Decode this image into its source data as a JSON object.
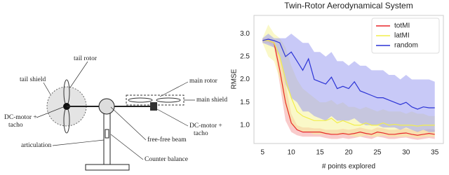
{
  "diagram": {
    "labels": {
      "tail_rotor": "tail rotor",
      "tail_shield": "tail shield",
      "dc_motor_left_1": "DC-motor +",
      "dc_motor_left_2": "tacho",
      "articulation": "articulation",
      "main_rotor": "main rotor",
      "main_shield": "main shield",
      "dc_motor_right_1": "DC-motor +",
      "dc_motor_right_2": "tacho",
      "beam": "free-free beam",
      "counter_balance": "Counter balance"
    }
  },
  "chart_data": {
    "type": "line",
    "title": "Twin-Rotor Aerodynamical System",
    "x_label": "# points explored",
    "y_label": "RMSE",
    "x": [
      5,
      6,
      7,
      8,
      9,
      10,
      11,
      12,
      13,
      14,
      15,
      16,
      17,
      18,
      19,
      20,
      21,
      22,
      23,
      24,
      25,
      26,
      27,
      28,
      29,
      30,
      31,
      32,
      33,
      34,
      35
    ],
    "xlim": [
      3.5,
      36.5
    ],
    "xticks": [
      5,
      10,
      15,
      20,
      25,
      30,
      35
    ],
    "ylim": [
      0.6,
      3.4
    ],
    "yticks": [
      {
        "value": 1,
        "label": "1.0"
      },
      {
        "value": 1.5,
        "label": "1.5"
      },
      {
        "value": 2,
        "label": "2.0"
      },
      {
        "value": 2.5,
        "label": "2.5"
      },
      {
        "value": 3,
        "label": "3.0"
      }
    ],
    "legend": "upper right",
    "series": [
      {
        "name": "totMI",
        "color": "#e8262a",
        "band_color": "#f4a0a0",
        "values": [
          2.85,
          2.85,
          2.8,
          2.2,
          1.5,
          1.05,
          0.9,
          0.85,
          0.85,
          0.85,
          0.85,
          0.82,
          0.8,
          0.8,
          0.82,
          0.8,
          0.82,
          0.85,
          0.82,
          0.8,
          0.85,
          0.83,
          0.8,
          0.8,
          0.82,
          0.83,
          0.8,
          0.78,
          0.8,
          0.82,
          0.8
        ],
        "upper": [
          2.9,
          2.9,
          2.85,
          2.5,
          1.9,
          1.25,
          1.0,
          0.95,
          0.95,
          0.93,
          0.93,
          0.9,
          0.9,
          0.9,
          0.92,
          0.9,
          0.92,
          0.95,
          0.92,
          0.9,
          0.95,
          0.93,
          0.9,
          0.9,
          0.92,
          0.93,
          0.9,
          0.88,
          0.9,
          0.92,
          0.9
        ],
        "lower": [
          2.8,
          2.8,
          2.7,
          1.9,
          1.1,
          0.85,
          0.78,
          0.75,
          0.75,
          0.75,
          0.75,
          0.72,
          0.7,
          0.7,
          0.72,
          0.7,
          0.72,
          0.75,
          0.72,
          0.7,
          0.75,
          0.73,
          0.7,
          0.7,
          0.72,
          0.73,
          0.7,
          0.68,
          0.7,
          0.72,
          0.7
        ]
      },
      {
        "name": "latMI",
        "color": "#f2ee4a",
        "band_color": "#f6f29a",
        "values": [
          2.85,
          2.85,
          2.8,
          2.5,
          2.0,
          1.6,
          1.3,
          1.2,
          1.15,
          1.1,
          1.1,
          1.1,
          1.15,
          1.05,
          1.1,
          1.05,
          1.0,
          1.0,
          1.05,
          1.0,
          1.0,
          1.05,
          1.0,
          1.02,
          1.0,
          1.0,
          1.0,
          0.98,
          1.0,
          1.0,
          1.0
        ],
        "upper": [
          2.9,
          3.2,
          3.0,
          2.9,
          2.7,
          2.3,
          2.0,
          1.8,
          1.7,
          1.6,
          1.5,
          1.5,
          1.55,
          1.45,
          1.5,
          1.4,
          1.4,
          1.35,
          1.4,
          1.35,
          1.3,
          1.35,
          1.3,
          1.3,
          1.3,
          1.25,
          1.3,
          1.25,
          1.25,
          1.2,
          1.2
        ],
        "lower": [
          2.8,
          2.5,
          2.4,
          2.0,
          1.4,
          1.0,
          0.9,
          0.85,
          0.85,
          0.8,
          0.8,
          0.8,
          0.8,
          0.78,
          0.8,
          0.78,
          0.75,
          0.75,
          0.78,
          0.75,
          0.75,
          0.78,
          0.75,
          0.75,
          0.75,
          0.75,
          0.75,
          0.72,
          0.75,
          0.75,
          0.75
        ]
      },
      {
        "name": "random",
        "color": "#2c34d6",
        "band_color": "#9a9cf0",
        "values": [
          2.85,
          2.88,
          2.85,
          2.8,
          2.5,
          2.6,
          2.4,
          2.2,
          2.45,
          2.0,
          1.95,
          1.9,
          2.05,
          1.8,
          1.85,
          1.8,
          1.95,
          1.75,
          1.7,
          1.65,
          1.6,
          1.6,
          1.55,
          1.5,
          1.45,
          1.5,
          1.4,
          1.35,
          1.4,
          1.38,
          1.38
        ],
        "upper": [
          2.9,
          3.0,
          2.9,
          2.9,
          2.9,
          3.0,
          2.9,
          2.8,
          2.8,
          2.6,
          2.6,
          2.5,
          2.6,
          2.4,
          2.4,
          2.3,
          2.4,
          2.3,
          2.3,
          2.2,
          2.2,
          2.2,
          2.1,
          2.1,
          2.0,
          2.1,
          2.0,
          2.0,
          2.0,
          2.0,
          1.95
        ],
        "lower": [
          2.8,
          2.75,
          2.7,
          2.5,
          1.9,
          1.6,
          1.5,
          1.3,
          1.3,
          1.2,
          1.15,
          1.1,
          1.2,
          1.1,
          1.1,
          1.1,
          1.15,
          1.05,
          1.0,
          1.0,
          1.0,
          0.95,
          0.95,
          0.95,
          0.9,
          0.95,
          0.9,
          0.85,
          0.9,
          0.85,
          0.85
        ]
      }
    ]
  }
}
